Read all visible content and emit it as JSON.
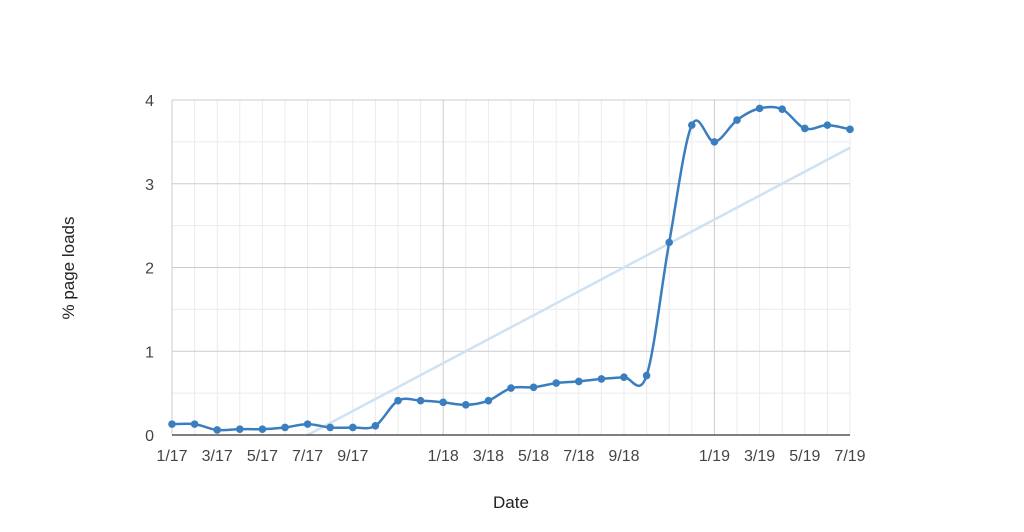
{
  "chart_data": {
    "type": "line",
    "xlabel": "Date",
    "ylabel": "% page loads",
    "ylim": [
      0,
      4
    ],
    "y_ticks": [
      "0",
      "1",
      "2",
      "3",
      "4"
    ],
    "x_ticks": [
      {
        "label": "1/17",
        "month": 0
      },
      {
        "label": "3/17",
        "month": 2
      },
      {
        "label": "5/17",
        "month": 4
      },
      {
        "label": "7/17",
        "month": 6
      },
      {
        "label": "9/17",
        "month": 8
      },
      {
        "label": "1/18",
        "month": 12
      },
      {
        "label": "3/18",
        "month": 14
      },
      {
        "label": "5/18",
        "month": 16
      },
      {
        "label": "7/18",
        "month": 18
      },
      {
        "label": "9/18",
        "month": 20
      },
      {
        "label": "1/19",
        "month": 24
      },
      {
        "label": "3/19",
        "month": 26
      },
      {
        "label": "5/19",
        "month": 28
      },
      {
        "label": "7/19",
        "month": 30
      }
    ],
    "xlim_months": [
      0,
      30
    ],
    "grid": true,
    "series": [
      {
        "color": "#3a7ebf",
        "months": [
          0,
          1,
          2,
          3,
          4,
          5,
          6,
          7,
          8,
          9,
          10,
          11,
          12,
          13,
          14,
          15,
          16,
          17,
          18,
          19,
          20,
          21,
          22,
          23,
          24,
          25,
          26,
          27,
          28,
          29,
          30
        ],
        "values": [
          0.13,
          0.13,
          0.06,
          0.07,
          0.07,
          0.09,
          0.13,
          0.09,
          0.09,
          0.11,
          0.41,
          0.41,
          0.39,
          0.36,
          0.41,
          0.56,
          0.57,
          0.62,
          0.64,
          0.67,
          0.69,
          0.71,
          2.3,
          3.7,
          3.5,
          3.76,
          3.9,
          3.89,
          3.66,
          3.7,
          3.65
        ]
      }
    ],
    "trendline": {
      "color": "#cfe2f3",
      "start": {
        "month": 6,
        "value": 0
      },
      "end": {
        "month": 30,
        "value": 3.43
      }
    }
  }
}
